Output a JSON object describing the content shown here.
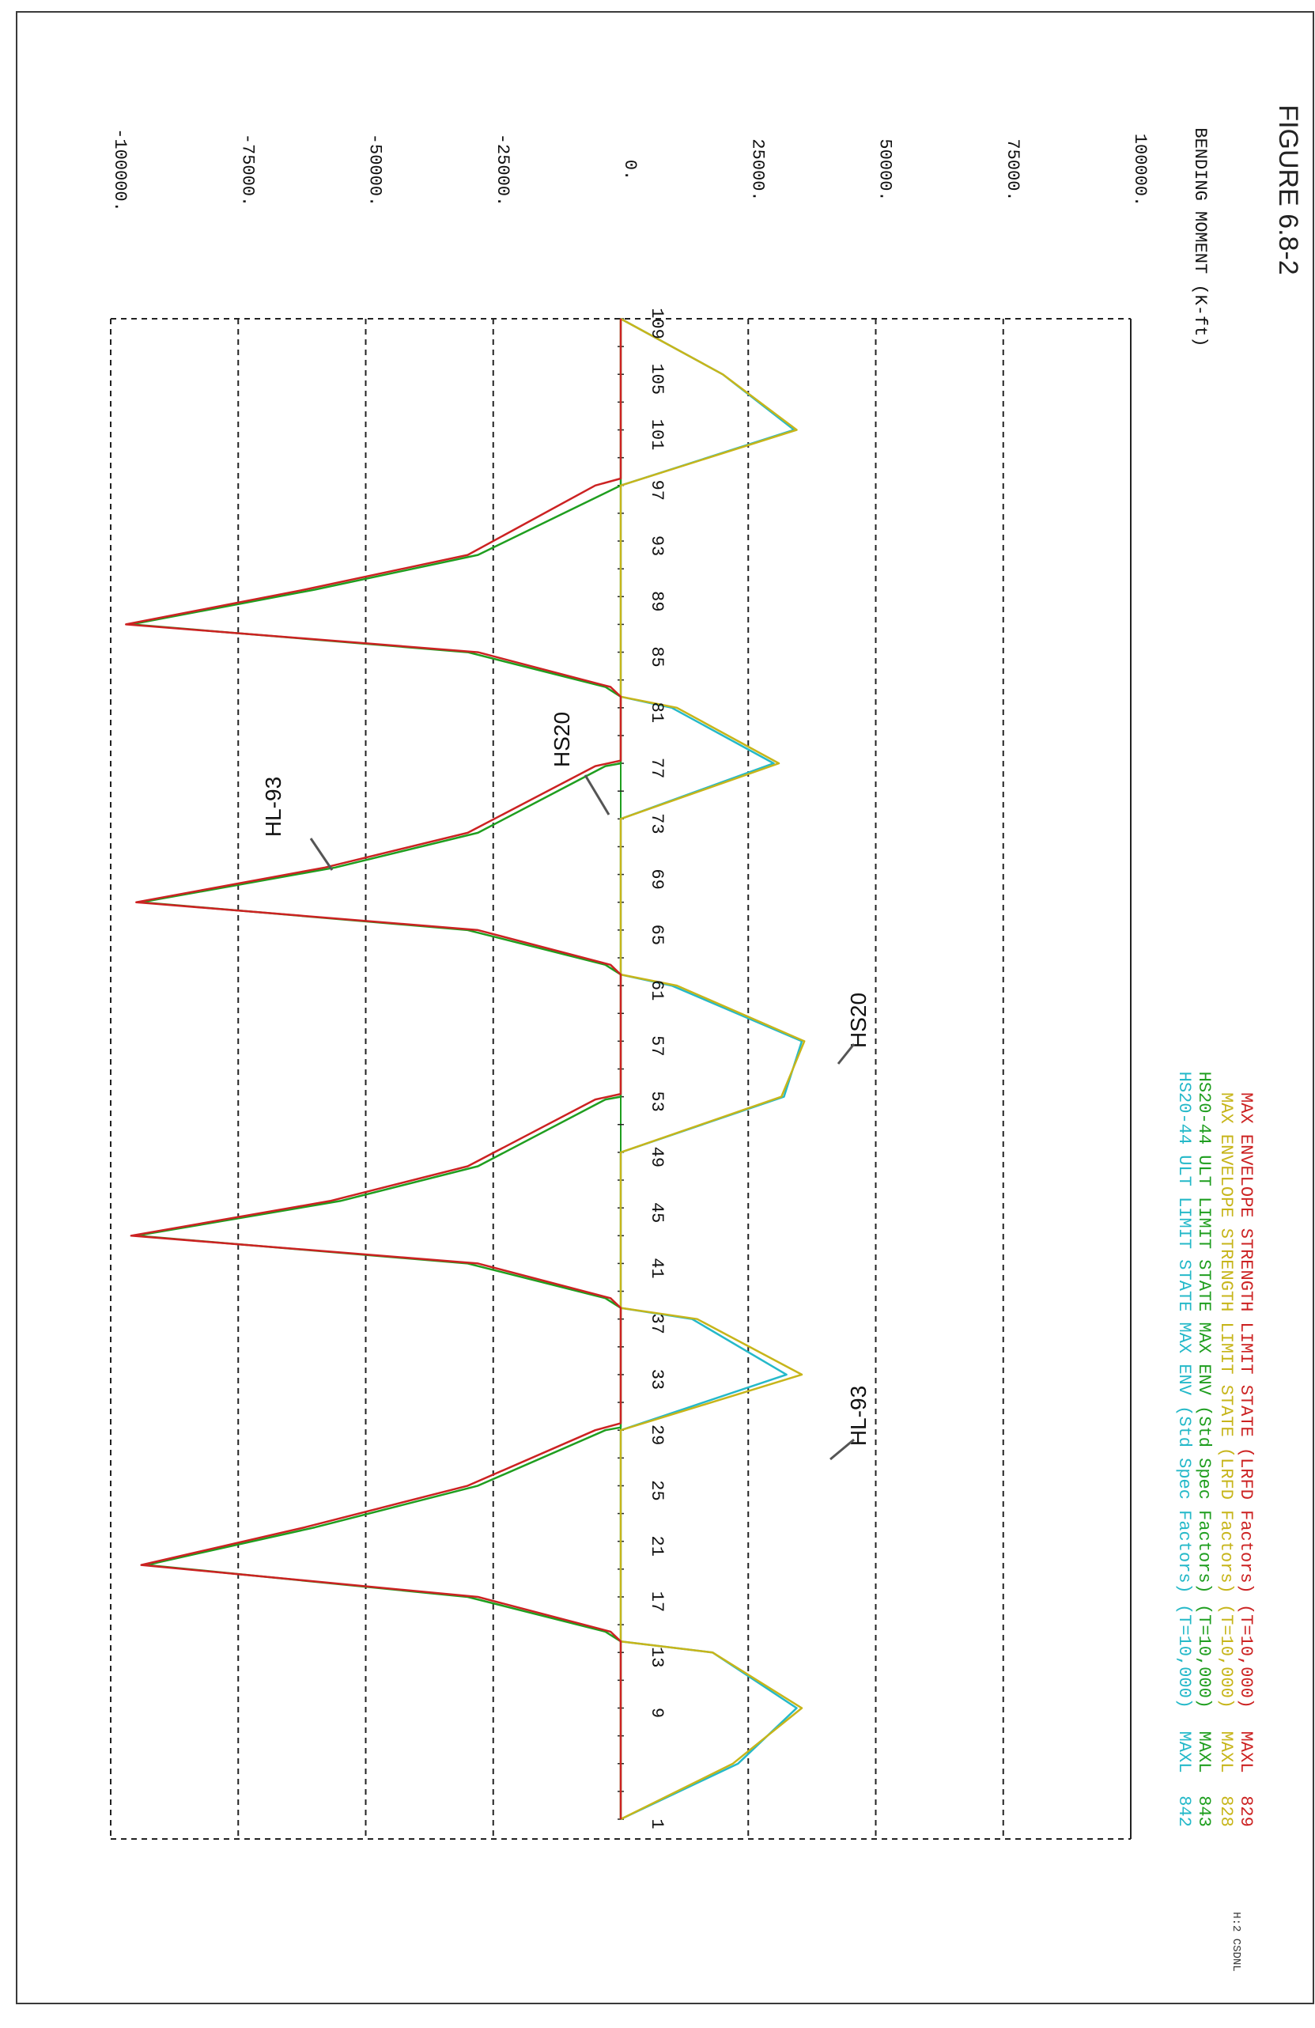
{
  "figure_label": "FIGURE 6.8-2",
  "stamp": "H:2 CSDNL",
  "chart_data": {
    "type": "line",
    "title": "",
    "xlabel": "",
    "ylabel": "BENDING MOMENT (K-ft)",
    "orientation": "rotated-90-clockwise",
    "ylim": [
      -100000,
      100000
    ],
    "yticks": [
      "-100000.",
      "-75000.",
      "-50000.",
      "-25000.",
      "0.",
      "25000.",
      "50000.",
      "75000.",
      "100000."
    ],
    "grid": true,
    "node_labels": [
      "1",
      "9",
      "13",
      "17",
      "21",
      "25",
      "29",
      "33",
      "37",
      "41",
      "45",
      "49",
      "53",
      "57",
      "61",
      "65",
      "69",
      "73",
      "77",
      "81",
      "85",
      "89",
      "93",
      "97",
      "101",
      "105",
      "109"
    ],
    "legend": [
      {
        "num": "842",
        "name": "MAXL",
        "desc": "HS20-44 ULT LIMIT STATE MAX ENV (Std Spec Factors) (T=10,000)",
        "color": "#25b9c9"
      },
      {
        "num": "843",
        "name": "MAXL",
        "desc": "HS20-44 ULT LIMIT STATE MAX ENV (Std Spec Factors) (T=10,000)",
        "color": "#1f9e1f"
      },
      {
        "num": "828",
        "name": "MAXL",
        "desc": "MAX ENVELOPE STRENGTH LIMIT STATE (LRFD Factors) (T=10,000)",
        "color": "#c7b51a"
      },
      {
        "num": "829",
        "name": "MAXL",
        "desc": "MAX ENVELOPE STRENGTH LIMIT STATE (LRFD Factors) (T=10,000)",
        "color": "#cc2222"
      }
    ],
    "annotations": [
      "HL-93",
      "HS20",
      "HS20",
      "HL-93"
    ],
    "series": [
      {
        "name": "842",
        "color": "#25b9c9",
        "x": [
          1,
          5,
          9,
          13,
          13.8,
          29,
          33,
          37,
          37.8,
          49,
          53,
          57,
          61,
          61.8,
          73,
          77,
          81,
          81.8,
          97,
          101,
          105,
          109
        ],
        "values": [
          0,
          23000,
          34500,
          18000,
          0,
          0,
          32500,
          14000,
          0,
          0,
          32000,
          35500,
          10000,
          0,
          0,
          30000,
          10000,
          0,
          0,
          34000,
          20000,
          0
        ]
      },
      {
        "name": "843",
        "color": "#1f9e1f",
        "x": [
          1,
          13.8,
          14.5,
          17,
          19.3,
          22,
          25,
          29,
          29.2,
          37.8,
          38.5,
          41,
          43,
          45.5,
          48,
          52.8,
          53,
          61.8,
          62.5,
          65,
          67,
          69.5,
          72,
          76.8,
          77,
          81.8,
          82.5,
          85,
          87,
          89.5,
          92,
          97,
          109
        ],
        "values": [
          0,
          0,
          -3000,
          -30000,
          -93000,
          -60000,
          -28000,
          -3000,
          0,
          0,
          -3000,
          -30000,
          -95000,
          -55000,
          -28000,
          -3000,
          0,
          0,
          -3000,
          -30000,
          -94000,
          -56000,
          -28000,
          -3000,
          0,
          0,
          -3000,
          -30000,
          -96000,
          -60000,
          -28000,
          0,
          0
        ]
      },
      {
        "name": "828",
        "color": "#c7b51a",
        "x": [
          1,
          5,
          9,
          13,
          13.8,
          29,
          33,
          37,
          37.8,
          49,
          53,
          57,
          61,
          61.8,
          73,
          77,
          81,
          81.8,
          97,
          101,
          105,
          109
        ],
        "values": [
          0,
          22000,
          35500,
          18000,
          0,
          0,
          35500,
          15000,
          0,
          0,
          31500,
          36000,
          11000,
          0,
          0,
          31000,
          11000,
          0,
          0,
          34500,
          20000,
          0
        ]
      },
      {
        "name": "829",
        "color": "#cc2222",
        "x": [
          1,
          13.8,
          14.5,
          17,
          19.3,
          22,
          25,
          29,
          29.5,
          37.8,
          38.5,
          41,
          43,
          45.5,
          48,
          52.8,
          53.2,
          61.8,
          62.5,
          65,
          67,
          69.5,
          72,
          76.8,
          77.2,
          81.8,
          82.5,
          85,
          87,
          89.5,
          92,
          97,
          97.5,
          109
        ],
        "values": [
          0,
          0,
          -2000,
          -28000,
          -94000,
          -62000,
          -30000,
          -5000,
          0,
          0,
          -2000,
          -28000,
          -96000,
          -57000,
          -30000,
          -5000,
          0,
          0,
          -2000,
          -28000,
          -95000,
          -58000,
          -30000,
          -5000,
          0,
          0,
          -2000,
          -28000,
          -97000,
          -62000,
          -30000,
          -5000,
          0,
          0
        ]
      }
    ]
  }
}
